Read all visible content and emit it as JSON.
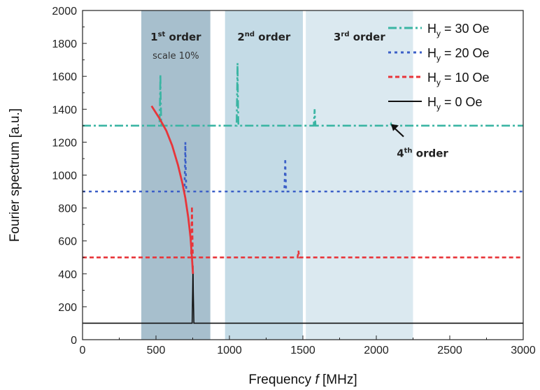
{
  "chart_data": {
    "type": "line",
    "xlabel": "Frequency",
    "xlabel_symbol": "f",
    "xlabel_unit": "[MHz]",
    "ylabel": "Fourier spectrum   [a.u.]",
    "xlim": [
      0,
      3000
    ],
    "ylim": [
      0,
      2000
    ],
    "xticks": [
      0,
      500,
      1000,
      1500,
      2000,
      2500,
      3000
    ],
    "yticks": [
      0,
      200,
      400,
      600,
      800,
      1000,
      1200,
      1400,
      1600,
      1800,
      2000
    ],
    "grid": false,
    "legend_position": "top-right",
    "regions": [
      {
        "x": [
          400,
          870
        ],
        "color": "#a7bfcd",
        "label_num": "1",
        "label_sup": "st",
        "label_text": "order",
        "note": "scale 10%"
      },
      {
        "x": [
          970,
          1500
        ],
        "color": "#c4dbe6",
        "label_num": "2",
        "label_sup": "nd",
        "label_text": "order"
      },
      {
        "x": [
          1520,
          2250
        ],
        "color": "#dbe9f0",
        "label_num": "3",
        "label_sup": "rd",
        "label_text": "order"
      }
    ],
    "annotation": {
      "num": "4",
      "sup": "th",
      "text": "order",
      "x": 2100,
      "y": 1310
    },
    "series": [
      {
        "name_main": "H",
        "name_sub": "y",
        "name_rest": " = 30 Oe",
        "color": "#3ab5a3",
        "dash": "12,4,3,4",
        "baseline": 1300,
        "peaks": [
          [
            530,
            1610
          ],
          [
            1055,
            1680
          ],
          [
            1580,
            1400
          ],
          [
            2100,
            1310
          ]
        ]
      },
      {
        "name_main": "H",
        "name_sub": "y",
        "name_rest": " = 20 Oe",
        "color": "#3b5fc7",
        "dash": "4,5",
        "baseline": 900,
        "peaks": [
          [
            700,
            1200
          ],
          [
            1380,
            1100
          ]
        ]
      },
      {
        "name_main": "H",
        "name_sub": "y",
        "name_rest": " = 10 Oe",
        "color": "#e8353a",
        "dash": "6,4",
        "baseline": 500,
        "peaks": [
          [
            745,
            810
          ],
          [
            1470,
            540
          ]
        ]
      },
      {
        "name_main": "H",
        "name_sub": "y",
        "name_rest": " = 0 Oe",
        "color": "#111111",
        "dash": "",
        "baseline": 100,
        "peaks": [
          [
            752,
            450
          ]
        ]
      }
    ],
    "fit_curve": {
      "color": "#e8353a",
      "x": [
        470,
        520,
        570,
        610,
        650,
        680,
        700,
        720,
        735,
        745,
        752
      ],
      "y": [
        1420,
        1350,
        1270,
        1180,
        1060,
        950,
        860,
        740,
        620,
        500,
        400
      ]
    }
  }
}
